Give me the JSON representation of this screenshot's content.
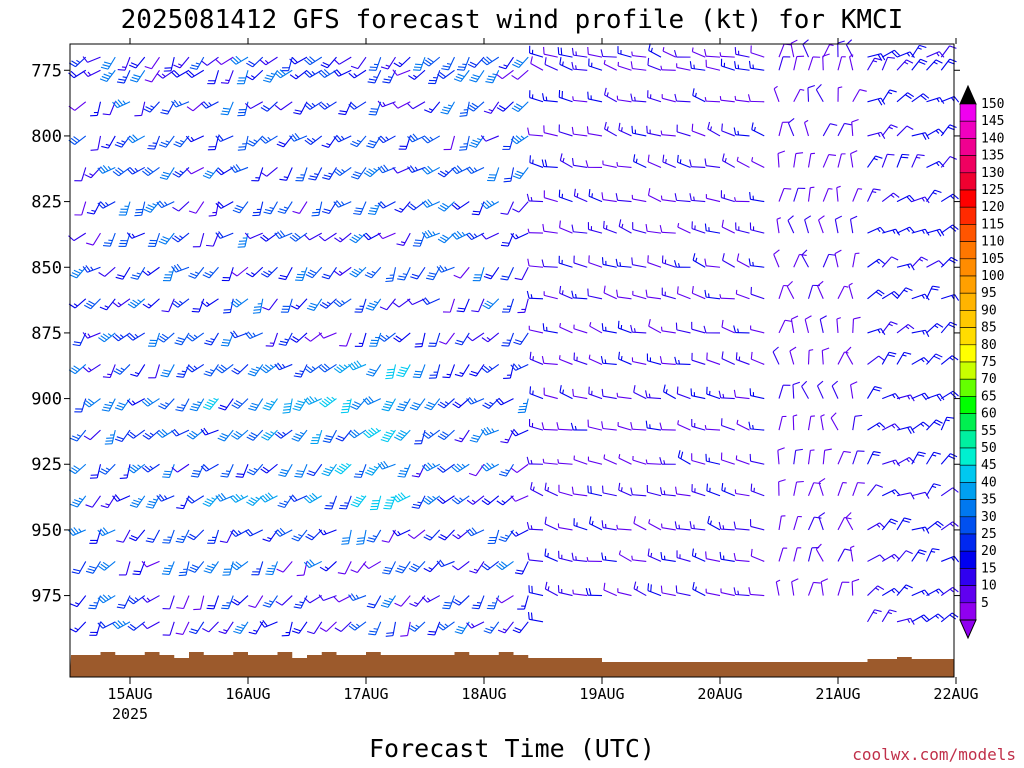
{
  "chart_data": {
    "type": "wind-barb-time-height",
    "title": "2025081412 GFS forecast wind profile (kt) for KMCI",
    "xlabel": "Forecast Time (UTC)",
    "credit": "coolwx.com/models",
    "y_axis": {
      "units": "hPa",
      "ticks": [
        "775",
        "800",
        "825",
        "850",
        "875",
        "900",
        "925",
        "950",
        "975"
      ],
      "range": [
        1006,
        765
      ],
      "inverted": true
    },
    "x_axis": {
      "ticks": [
        {
          "label": "15AUG",
          "sublabel": "2025"
        },
        {
          "label": "16AUG",
          "sublabel": ""
        },
        {
          "label": "17AUG",
          "sublabel": ""
        },
        {
          "label": "18AUG",
          "sublabel": ""
        },
        {
          "label": "19AUG",
          "sublabel": ""
        },
        {
          "label": "20AUG",
          "sublabel": ""
        },
        {
          "label": "21AUG",
          "sublabel": ""
        },
        {
          "label": "22AUG",
          "sublabel": ""
        }
      ],
      "start_hours_before_first_tick": 12,
      "step_hours": 3
    },
    "colorbar": {
      "levels": [
        "150",
        "145",
        "140",
        "135",
        "130",
        "125",
        "120",
        "115",
        "110",
        "105",
        "100",
        "95",
        "90",
        "85",
        "80",
        "75",
        "70",
        "65",
        "60",
        "55",
        "50",
        "45",
        "40",
        "35",
        "30",
        "25",
        "20",
        "15",
        "10",
        "5"
      ],
      "colors": [
        "#f000f0",
        "#f000c0",
        "#f00090",
        "#f00060",
        "#f00030",
        "#ff0000",
        "#ff2a00",
        "#ff5500",
        "#ff7700",
        "#ff8c00",
        "#ffa000",
        "#ffb400",
        "#ffc800",
        "#ffdc00",
        "#ffff00",
        "#c8ff00",
        "#64ff00",
        "#00ff00",
        "#00f050",
        "#00f0a0",
        "#00f0d0",
        "#00c8f0",
        "#00a0f0",
        "#0078f0",
        "#0050f0",
        "#0028f0",
        "#0000f0",
        "#3000f0",
        "#6000f0",
        "#9000f0"
      ],
      "top_arrow_color": "#000000",
      "bottom_arrow_color": "#9000f0"
    },
    "terrain_color": "#9c5a2c",
    "grid": false,
    "pressure_levels": [
      770,
      775,
      787,
      800,
      812,
      825,
      837,
      850,
      862,
      875,
      887,
      900,
      912,
      925,
      937,
      950,
      962,
      975,
      985
    ],
    "wind_regimes": [
      {
        "from_hour": -12,
        "to_hour": 84,
        "dir_lo": 190,
        "dir_hi": 250,
        "speed_lo": 8,
        "speed_hi": 35,
        "note": "southwesterly"
      },
      {
        "from_hour": 84,
        "to_hour": 132,
        "dir_lo": 270,
        "dir_hi": 300,
        "speed_lo": 5,
        "speed_hi": 18,
        "note": "westerly"
      },
      {
        "from_hour": 132,
        "to_hour": 150,
        "dir_lo": 330,
        "dir_hi": 30,
        "speed_lo": 5,
        "speed_hi": 12,
        "note": "northerly light"
      },
      {
        "from_hour": 150,
        "to_hour": 180,
        "dir_lo": 20,
        "dir_hi": 80,
        "speed_lo": 10,
        "speed_hi": 20,
        "note": "northeasterly"
      }
    ]
  }
}
